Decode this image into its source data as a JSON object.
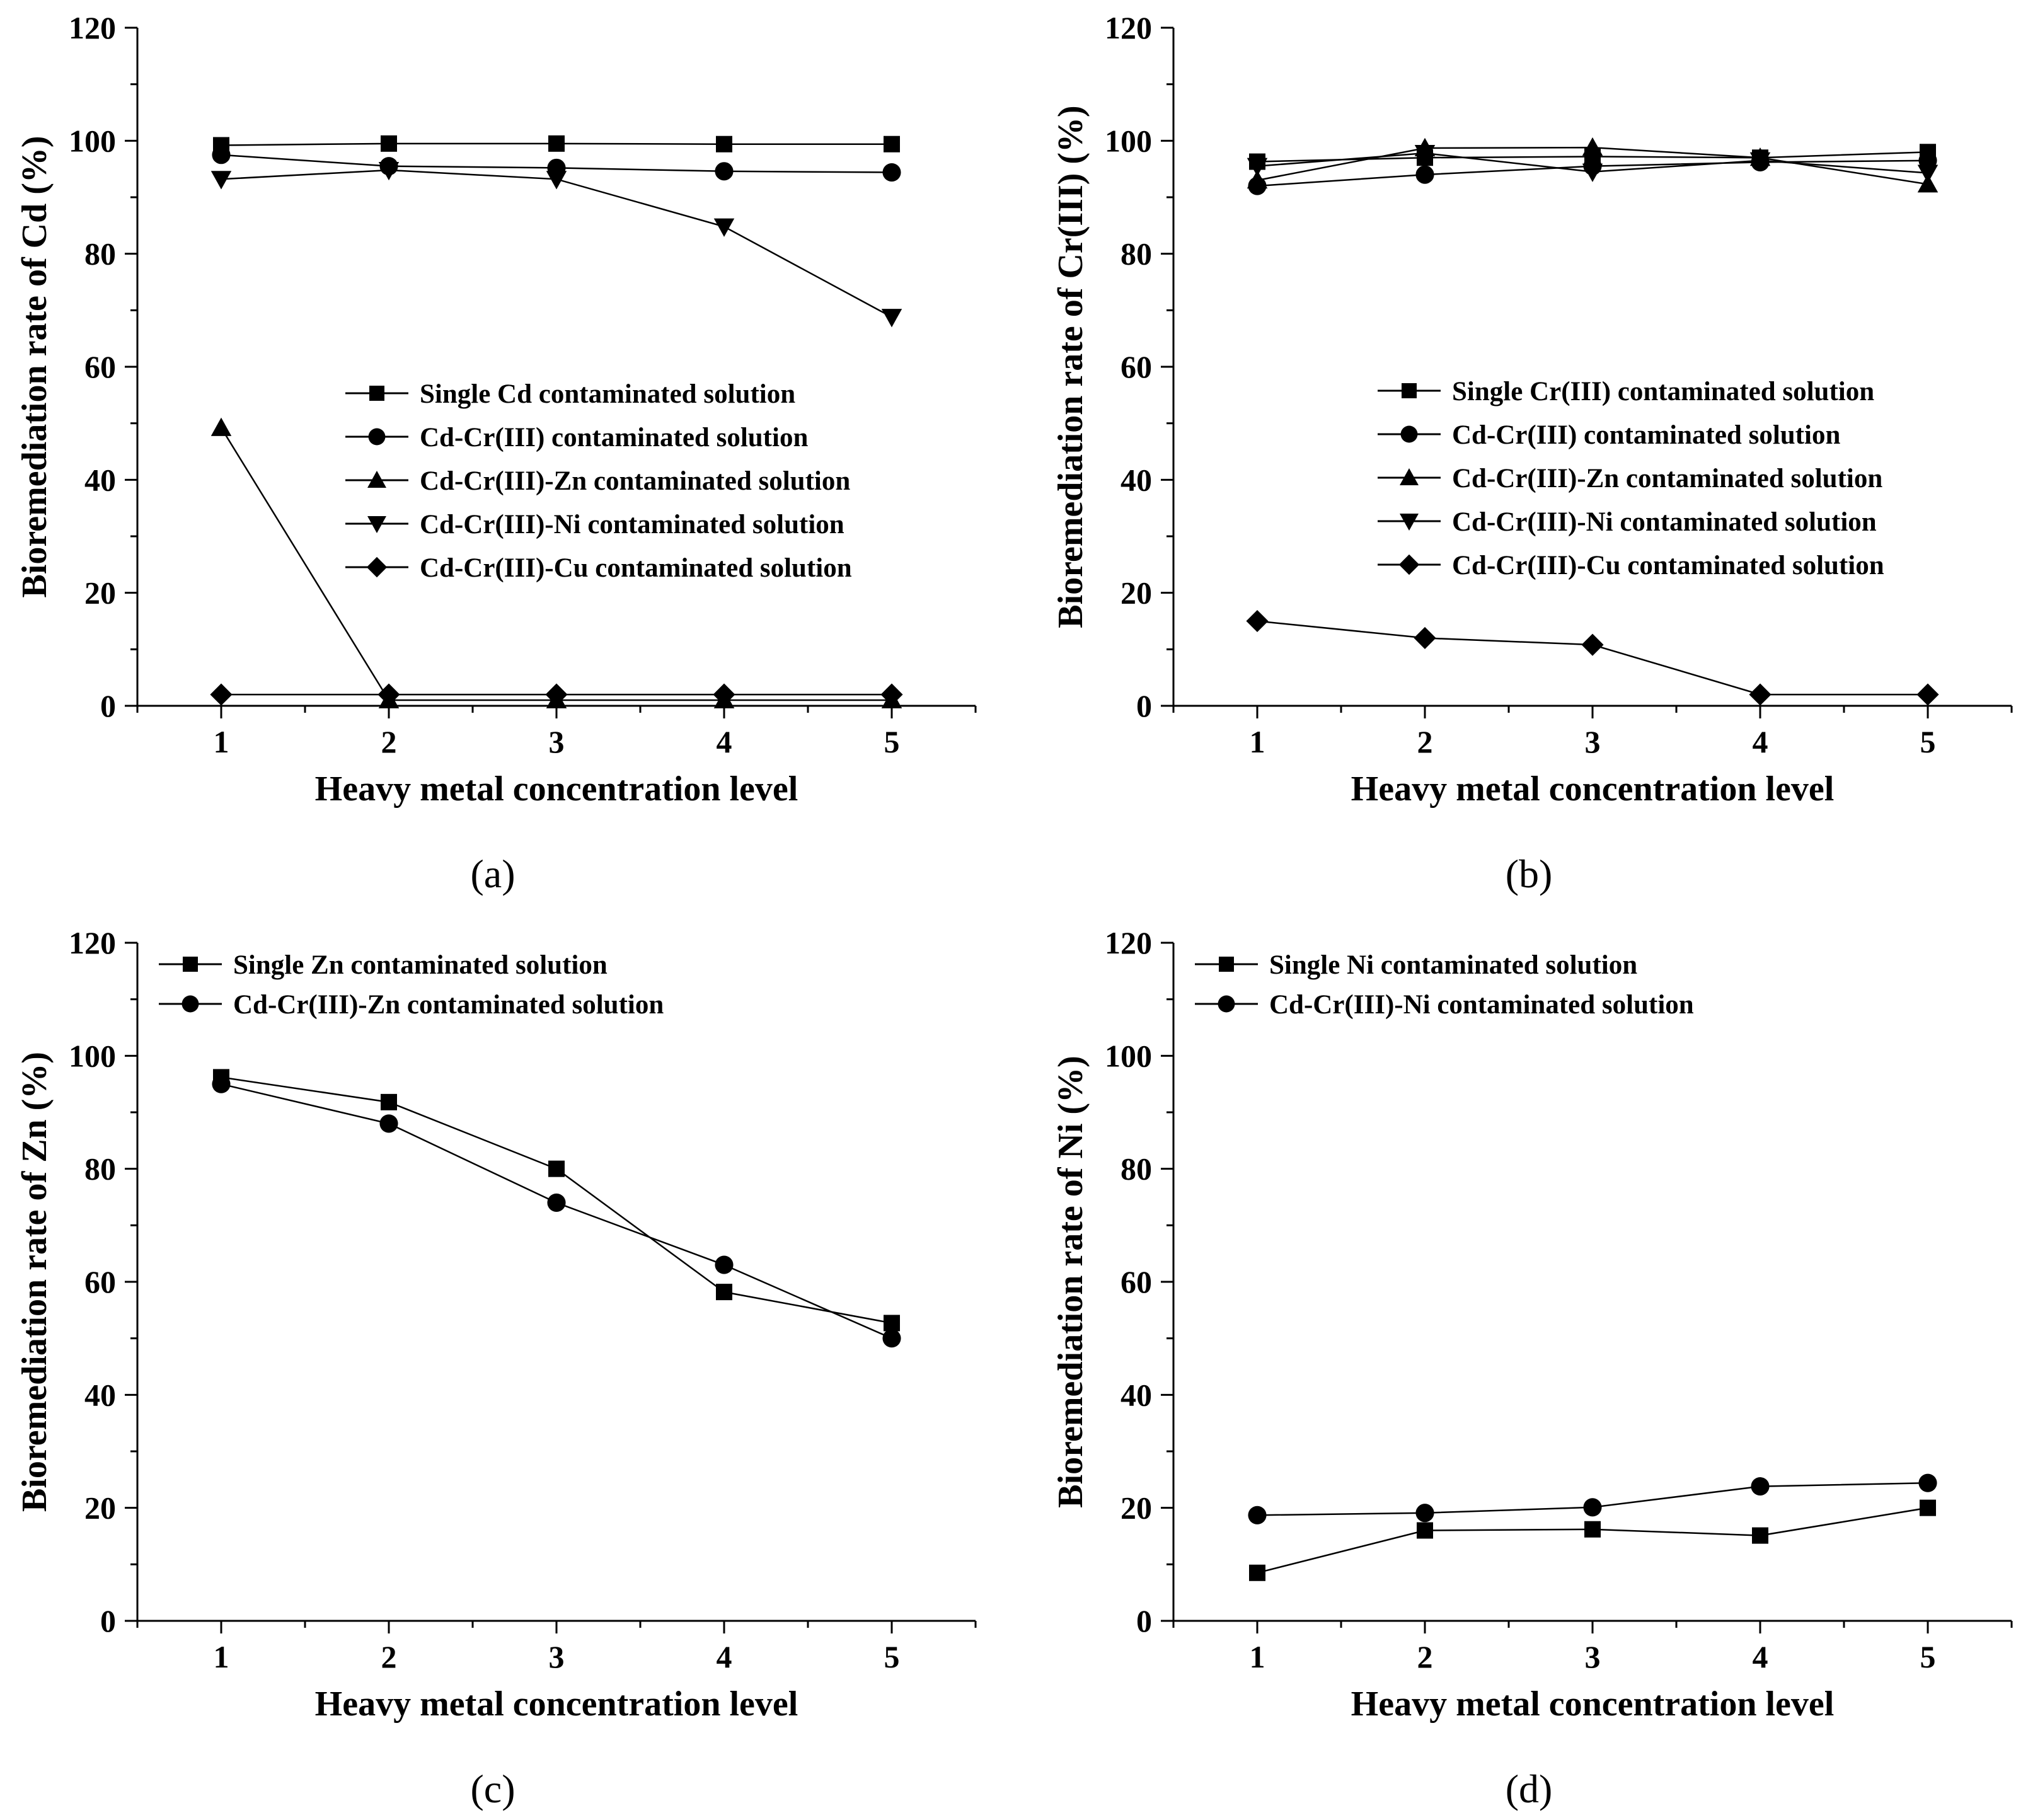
{
  "chart_data": [
    {
      "panel": "a",
      "caption": "(a)",
      "type": "line",
      "xlabel": "Heavy metal concentration level",
      "ylabel": "Bioremediation rate of Cd (%)",
      "x": [
        1,
        2,
        3,
        4,
        5
      ],
      "xticks": [
        "1",
        "2",
        "3",
        "4",
        "5"
      ],
      "xlim": [
        0.5,
        5.5
      ],
      "ylim": [
        0,
        120
      ],
      "yticks": [
        "0",
        "20",
        "40",
        "60",
        "80",
        "100",
        "120"
      ],
      "legend": "center-right",
      "series": [
        {
          "name": "Single Cd contaminated solution",
          "marker": "square",
          "values": [
            99.2,
            99.5,
            99.5,
            99.4,
            99.4
          ]
        },
        {
          "name": "Cd-Cr(III) contaminated solution",
          "marker": "circle",
          "values": [
            97.5,
            95.5,
            95.2,
            94.6,
            94.4
          ]
        },
        {
          "name": "Cd-Cr(III)-Zn contaminated solution",
          "marker": "triangle-up",
          "values": [
            49.2,
            1.0,
            1.0,
            1.0,
            1.0
          ]
        },
        {
          "name": "Cd-Cr(III)-Ni contaminated solution",
          "marker": "triangle-down",
          "values": [
            93.2,
            94.8,
            93.2,
            84.8,
            68.8
          ]
        },
        {
          "name": "Cd-Cr(III)-Cu contaminated solution",
          "marker": "diamond",
          "values": [
            2.0,
            2.0,
            2.0,
            2.0,
            2.0
          ]
        }
      ]
    },
    {
      "panel": "b",
      "caption": "(b)",
      "type": "line",
      "xlabel": "Heavy metal concentration level",
      "ylabel": "Bioremediation rate of Cr(III) (%)",
      "x": [
        1,
        2,
        3,
        4,
        5
      ],
      "xticks": [
        "1",
        "2",
        "3",
        "4",
        "5"
      ],
      "xlim": [
        0.5,
        5.5
      ],
      "ylim": [
        0,
        120
      ],
      "yticks": [
        "0",
        "20",
        "40",
        "60",
        "80",
        "100",
        "120"
      ],
      "legend": "center-right",
      "series": [
        {
          "name": "Single Cr(III) contaminated solution",
          "marker": "square",
          "values": [
            96.3,
            97.0,
            97.2,
            97.0,
            98.0
          ]
        },
        {
          "name": "Cd-Cr(III) contaminated solution",
          "marker": "circle",
          "values": [
            92.0,
            94.0,
            95.5,
            96.2,
            96.5
          ]
        },
        {
          "name": "Cd-Cr(III)-Zn contaminated solution",
          "marker": "triangle-up",
          "values": [
            93.0,
            98.7,
            98.8,
            97.0,
            92.3
          ]
        },
        {
          "name": "Cd-Cr(III)-Ni contaminated solution",
          "marker": "triangle-down",
          "values": [
            95.5,
            97.8,
            94.5,
            96.5,
            94.3
          ]
        },
        {
          "name": "Cd-Cr(III)-Cu contaminated solution",
          "marker": "diamond",
          "values": [
            15.0,
            12.0,
            10.8,
            2.0,
            2.0
          ]
        }
      ]
    },
    {
      "panel": "c",
      "caption": "(c)",
      "type": "line",
      "xlabel": "Heavy metal concentration level",
      "ylabel": "Bioremediation rate of Zn (%)",
      "x": [
        1,
        2,
        3,
        4,
        5
      ],
      "xticks": [
        "1",
        "2",
        "3",
        "4",
        "5"
      ],
      "xlim": [
        0.5,
        5.5
      ],
      "ylim": [
        0,
        120
      ],
      "yticks": [
        "0",
        "20",
        "40",
        "60",
        "80",
        "100",
        "120"
      ],
      "legend": "top-left",
      "series": [
        {
          "name": "Single Zn contaminated solution",
          "marker": "square",
          "values": [
            96.2,
            91.8,
            80.0,
            58.2,
            52.7
          ]
        },
        {
          "name": "Cd-Cr(III)-Zn contaminated solution",
          "marker": "circle",
          "values": [
            95.0,
            88.0,
            74.0,
            63.0,
            50.0
          ]
        }
      ]
    },
    {
      "panel": "d",
      "caption": "(d)",
      "type": "line",
      "xlabel": "Heavy metal concentration level",
      "ylabel": "Bioremediation rate of Ni (%)",
      "x": [
        1,
        2,
        3,
        4,
        5
      ],
      "xticks": [
        "1",
        "2",
        "3",
        "4",
        "5"
      ],
      "xlim": [
        0.5,
        5.5
      ],
      "ylim": [
        0,
        120
      ],
      "yticks": [
        "0",
        "20",
        "40",
        "60",
        "80",
        "100",
        "120"
      ],
      "legend": "top-left",
      "series": [
        {
          "name": "Single Ni contaminated solution",
          "marker": "square",
          "values": [
            8.5,
            16.0,
            16.2,
            15.1,
            20.0
          ]
        },
        {
          "name": "Cd-Cr(III)-Ni contaminated solution",
          "marker": "circle",
          "values": [
            18.7,
            19.1,
            20.1,
            23.8,
            24.4
          ]
        }
      ]
    }
  ]
}
